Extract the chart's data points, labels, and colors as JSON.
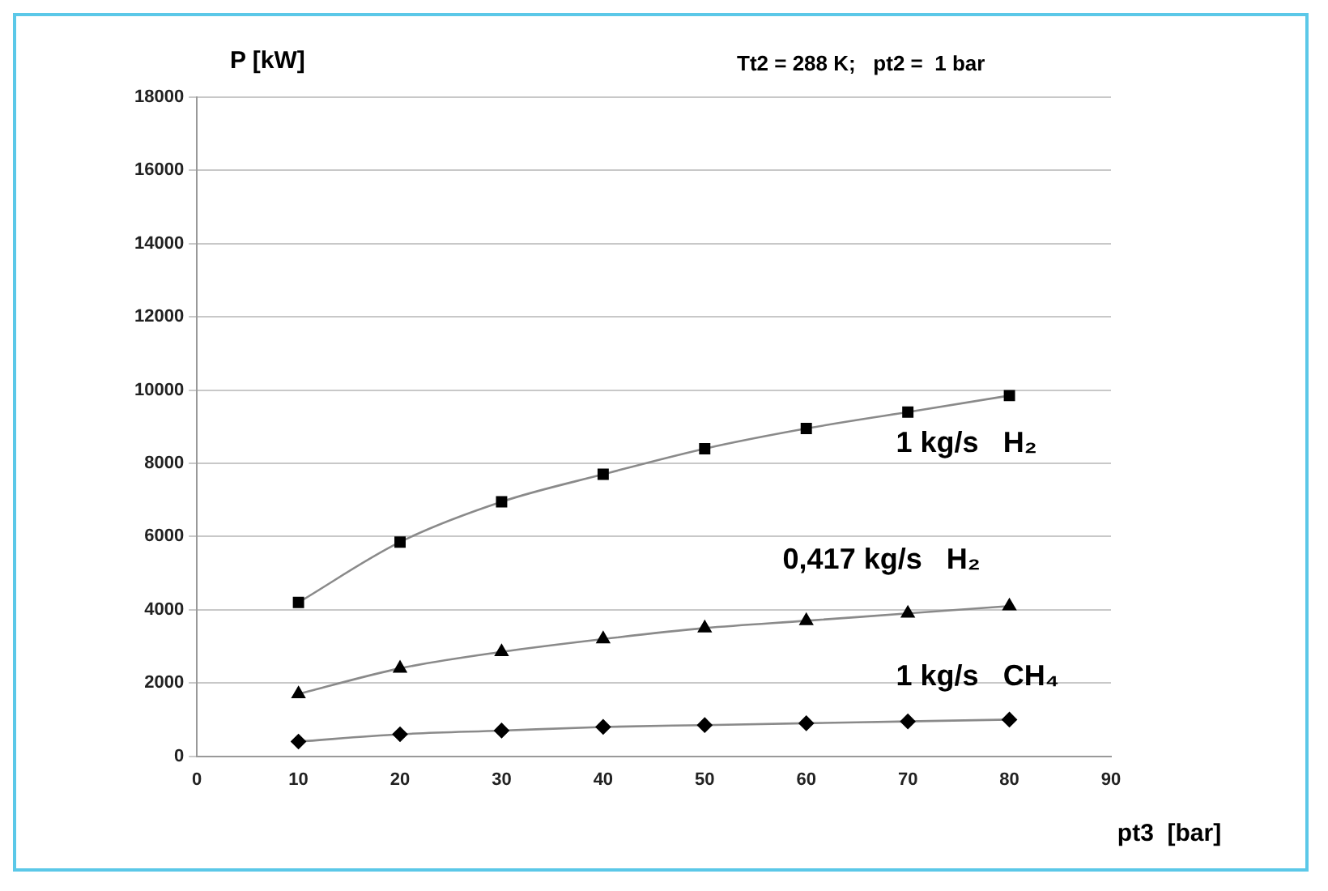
{
  "chart_data": {
    "type": "line",
    "ylabel": "P [kW]",
    "xlabel": "pt3  [bar]",
    "annotations": [
      "Tt2 = 288 K;   pt2 =  1 bar"
    ],
    "x": [
      10,
      20,
      30,
      40,
      50,
      60,
      70,
      80
    ],
    "series": [
      {
        "name": "1 kg/s   H₂",
        "color": "#000000",
        "marker": "square",
        "values": [
          4200,
          5850,
          6950,
          7700,
          8400,
          8950,
          9400,
          9850
        ]
      },
      {
        "name": "0,417 kg/s   H₂",
        "color": "#000000",
        "marker": "triangle",
        "values": [
          1700,
          2400,
          2850,
          3200,
          3500,
          3700,
          3900,
          4100
        ]
      },
      {
        "name": "1 kg/s   CH₄",
        "color": "#000000",
        "marker": "diamond",
        "values": [
          400,
          600,
          700,
          800,
          850,
          900,
          950,
          1000
        ]
      }
    ],
    "xlim": [
      0,
      90
    ],
    "xticks": [
      0,
      10,
      20,
      30,
      40,
      50,
      60,
      70,
      80,
      90
    ],
    "ylim": [
      0,
      18000
    ],
    "yticks": [
      0,
      2000,
      4000,
      6000,
      8000,
      10000,
      12000,
      14000,
      16000,
      18000
    ],
    "grid": "y",
    "legend": false,
    "line_style": "solid"
  }
}
